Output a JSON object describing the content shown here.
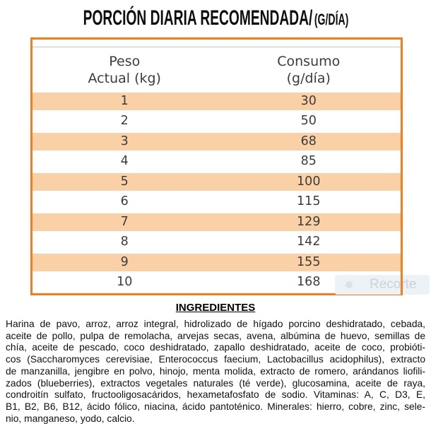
{
  "title": {
    "main": "PORCIÓN DIARIA RECOMENDADA/",
    "unit": "(G/DÍA)"
  },
  "table": {
    "header_peso_line1": "Peso",
    "header_peso_line2": "Actual (kg)",
    "header_consumo_line1": "Consumo",
    "header_consumo_line2": "(g/día)",
    "rows": [
      {
        "peso": "1",
        "consumo": "30"
      },
      {
        "peso": "2",
        "consumo": "50"
      },
      {
        "peso": "3",
        "consumo": "68"
      },
      {
        "peso": "4",
        "consumo": "85"
      },
      {
        "peso": "5",
        "consumo": "100"
      },
      {
        "peso": "6",
        "consumo": "115"
      },
      {
        "peso": "7",
        "consumo": "129"
      },
      {
        "peso": "8",
        "consumo": "142"
      },
      {
        "peso": "9",
        "consumo": "155"
      },
      {
        "peso": "10",
        "consumo": "168"
      }
    ]
  },
  "chart_data": {
    "type": "table",
    "title": "PORCIÓN DIARIA RECOMENDADA (G/DÍA)",
    "columns": [
      "Peso Actual (kg)",
      "Consumo (g/día)"
    ],
    "rows": [
      [
        1,
        30
      ],
      [
        2,
        50
      ],
      [
        3,
        68
      ],
      [
        4,
        85
      ],
      [
        5,
        100
      ],
      [
        6,
        115
      ],
      [
        7,
        129
      ],
      [
        8,
        142
      ],
      [
        9,
        155
      ],
      [
        10,
        168
      ]
    ]
  },
  "watermark": {
    "label": "Recorte"
  },
  "ingredients": {
    "heading": "INGREDIENTES",
    "lines": [
      "Harina de pavo, arroz, arroz integral, hidrolizado de hígado porcino deshidratado, cebada,",
      "aceite de pollo, pulpa de remolacha, arvejas secas, avena, albúmina de huevo, semillas de",
      "chía, aceite de pescado, coco deshidratado, zapallo deshidratado, aceite de coco, probióti-",
      "cos (Saccharomyces cerevisiae, Enterococcus faecium, Lactobacillus acidophilus), extracto",
      "de manzanilla, jengibre en polvo, hinojo, menta molida, extracto de romero, arándanos liofili-",
      "zados (blueberries), extractos vegetales naturales (té verde), glucosamina, aceite de raya,",
      "condroitín sulfato, fructooligosacáridos, hexametafosfato de sodio. Vitaminas: A, C, D3, E,",
      "B1, B2, B6, B12, ácido fólico, niacina, ácido pantoténico. Minerales: hierro, cobre, zinc, sele-",
      "nio, manganeso, yodo, calcio."
    ]
  },
  "colors": {
    "border_orange": "#F57D1E",
    "row_peach": "#FAD0A6",
    "table_text": "#3C3C3B",
    "body_text": "#0F0F0F",
    "watermark_text": "#CBD2DA"
  }
}
